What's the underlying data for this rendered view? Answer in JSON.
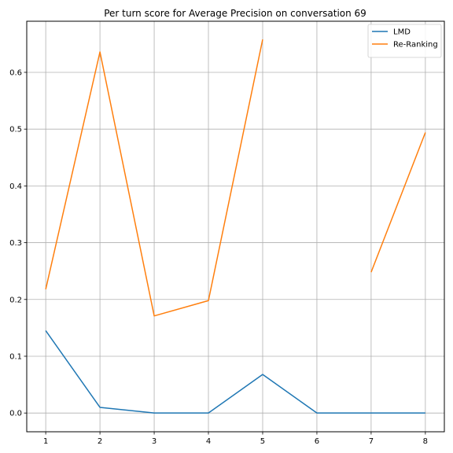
{
  "chart_data": {
    "type": "line",
    "title": "Per turn score for Average Precision on conversation 69",
    "xlabel": "",
    "ylabel": "",
    "x": [
      1,
      2,
      3,
      4,
      5,
      6,
      7,
      8
    ],
    "xlim": [
      0.65,
      8.35
    ],
    "ylim": [
      -0.033,
      0.69
    ],
    "xticks": [
      1,
      2,
      3,
      4,
      5,
      6,
      7,
      8
    ],
    "yticks": [
      0.0,
      0.1,
      0.2,
      0.3,
      0.4,
      0.5,
      0.6
    ],
    "ytick_labels": [
      "0.0",
      "0.1",
      "0.2",
      "0.3",
      "0.4",
      "0.5",
      "0.6"
    ],
    "grid": true,
    "legend": "top-right",
    "series": [
      {
        "name": "LMD",
        "color": "#1f77b4",
        "values": [
          0.145,
          0.01,
          0.0,
          0.0,
          0.068,
          0.0,
          0.0,
          0.0
        ]
      },
      {
        "name": "Re-Ranking",
        "color": "#ff7f0e",
        "values": [
          0.218,
          0.636,
          0.171,
          0.198,
          0.658,
          null,
          0.248,
          0.494
        ]
      }
    ]
  }
}
